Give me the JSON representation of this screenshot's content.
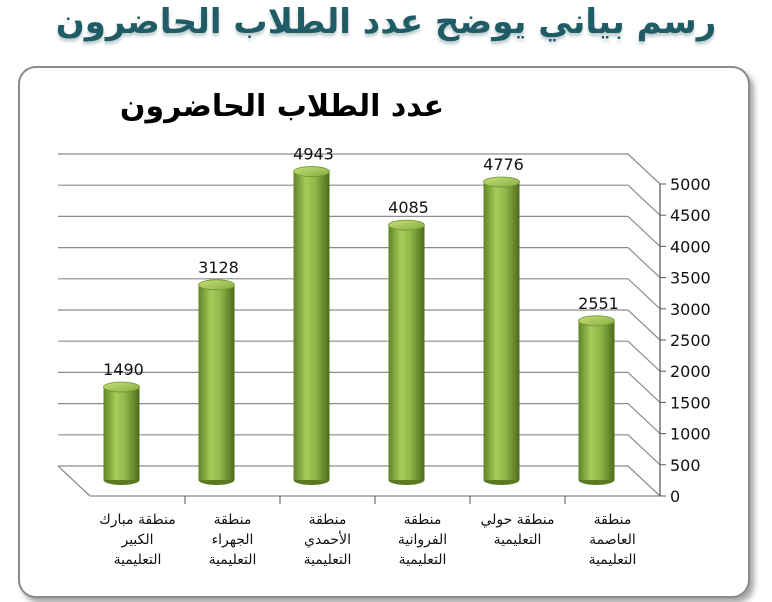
{
  "page": {
    "title": "رسم بياني يوضح عدد الطلاب الحاضرون"
  },
  "chart_data": {
    "type": "bar",
    "title": "عدد الطلاب الحاضرون",
    "categories": [
      [
        "منطقة مبارك",
        "الكبير",
        "التعليمية"
      ],
      [
        "منطقة",
        "الجهراء",
        "التعليمية"
      ],
      [
        "منطقة",
        "الأحمدي",
        "التعليمية"
      ],
      [
        "منطقة",
        "الفروانية",
        "التعليمية"
      ],
      [
        "منطقة حولي",
        "التعليمية"
      ],
      [
        "منطقة",
        "العاصمة",
        "التعليمية"
      ]
    ],
    "values": [
      1490,
      3128,
      4943,
      4085,
      4776,
      2551
    ],
    "ylim": [
      0,
      5000
    ],
    "yticks": [
      0,
      500,
      1000,
      1500,
      2000,
      2500,
      3000,
      3500,
      4000,
      4500,
      5000
    ],
    "y_axis_side": "right",
    "grid": true,
    "legend": "none",
    "colors": {
      "bar": "#8fb84a",
      "bar_dark": "#5a7a22",
      "bar_light": "#c6e07a",
      "grid": "#8c8c8c",
      "title": "#1f5c66"
    }
  }
}
